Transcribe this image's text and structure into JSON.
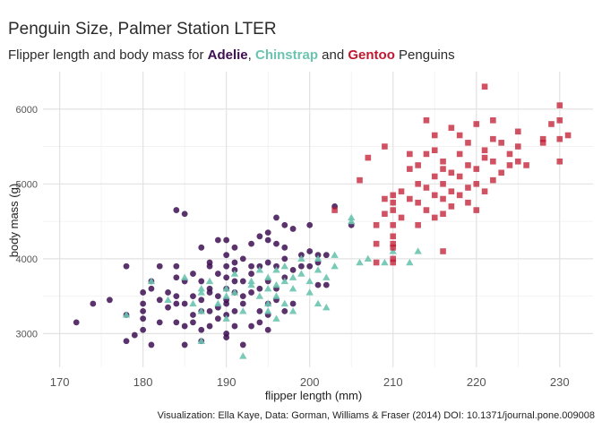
{
  "chart_data": {
    "type": "scatter",
    "title": "Penguin Size, Palmer Station LTER",
    "subtitle": {
      "prefix": "Flipper length and body mass for ",
      "species": [
        "Adelie",
        "Chinstrap",
        "Gentoo"
      ],
      "sep1": ", ",
      "sep2": " and ",
      "suffix": " Penguins"
    },
    "xlabel": "flipper length (mm)",
    "ylabel": "body mass (g)",
    "xlim": [
      168,
      234
    ],
    "ylim": [
      2550,
      6500
    ],
    "x_ticks": [
      170,
      180,
      190,
      200,
      210,
      220,
      230
    ],
    "y_ticks": [
      3000,
      4000,
      5000,
      6000
    ],
    "grid": true,
    "caption": "Visualization: Ella Kaye, Data: Gorman, Williams & Fraser (2014) DOI: 10.1371/journal.pone.009008",
    "series": [
      {
        "name": "Adelie",
        "color": "#3d0f52",
        "marker": "circle",
        "points": [
          [
            172,
            3150
          ],
          [
            174,
            3400
          ],
          [
            176,
            3450
          ],
          [
            178,
            3250
          ],
          [
            178,
            3900
          ],
          [
            178,
            2900
          ],
          [
            179,
            2980
          ],
          [
            180,
            3550
          ],
          [
            180,
            3300
          ],
          [
            180,
            3400
          ],
          [
            180,
            3200
          ],
          [
            180,
            3050
          ],
          [
            181,
            3600
          ],
          [
            181,
            2850
          ],
          [
            181,
            3700
          ],
          [
            182,
            3900
          ],
          [
            182,
            3450
          ],
          [
            182,
            3150
          ],
          [
            183,
            3350
          ],
          [
            183,
            3550
          ],
          [
            184,
            3150
          ],
          [
            184,
            3400
          ],
          [
            184,
            3500
          ],
          [
            184,
            3750
          ],
          [
            184,
            3900
          ],
          [
            184,
            4650
          ],
          [
            185,
            2850
          ],
          [
            185,
            3100
          ],
          [
            185,
            3700
          ],
          [
            185,
            3400
          ],
          [
            185,
            4600
          ],
          [
            186,
            3500
          ],
          [
            186,
            3250
          ],
          [
            186,
            3800
          ],
          [
            186,
            3150
          ],
          [
            187,
            3300
          ],
          [
            187,
            3450
          ],
          [
            187,
            3700
          ],
          [
            187,
            2900
          ],
          [
            187,
            3050
          ],
          [
            187,
            4150
          ],
          [
            188,
            3950
          ],
          [
            188,
            3600
          ],
          [
            188,
            3550
          ],
          [
            188,
            3300
          ],
          [
            188,
            3100
          ],
          [
            188,
            3900
          ],
          [
            189,
            3350
          ],
          [
            189,
            3800
          ],
          [
            189,
            3500
          ],
          [
            189,
            3200
          ],
          [
            189,
            4250
          ],
          [
            190,
            3000
          ],
          [
            190,
            3400
          ],
          [
            190,
            3600
          ],
          [
            190,
            3750
          ],
          [
            190,
            3900
          ],
          [
            190,
            4050
          ],
          [
            190,
            4250
          ],
          [
            190,
            3450
          ],
          [
            190,
            3250
          ],
          [
            190,
            2950
          ],
          [
            191,
            3550
          ],
          [
            191,
            3850
          ],
          [
            191,
            3300
          ],
          [
            191,
            4150
          ],
          [
            191,
            3100
          ],
          [
            191,
            3700
          ],
          [
            191,
            3950
          ],
          [
            192,
            3500
          ],
          [
            192,
            3700
          ],
          [
            192,
            4000
          ],
          [
            192,
            3400
          ],
          [
            192,
            2850
          ],
          [
            193,
            3800
          ],
          [
            193,
            4200
          ],
          [
            193,
            3550
          ],
          [
            193,
            3100
          ],
          [
            193,
            3900
          ],
          [
            194,
            3300
          ],
          [
            194,
            3600
          ],
          [
            194,
            3900
          ],
          [
            194,
            4300
          ],
          [
            194,
            3150
          ],
          [
            195,
            3400
          ],
          [
            195,
            3700
          ],
          [
            195,
            3950
          ],
          [
            195,
            4250
          ],
          [
            195,
            4350
          ],
          [
            195,
            3250
          ],
          [
            195,
            3050
          ],
          [
            196,
            3600
          ],
          [
            196,
            3900
          ],
          [
            196,
            4200
          ],
          [
            196,
            4550
          ],
          [
            196,
            3450
          ],
          [
            197,
            3750
          ],
          [
            197,
            4150
          ],
          [
            197,
            4450
          ],
          [
            197,
            3300
          ],
          [
            197,
            4000
          ],
          [
            198,
            3400
          ],
          [
            198,
            3850
          ],
          [
            198,
            4400
          ],
          [
            199,
            3900
          ],
          [
            199,
            4050
          ],
          [
            200,
            3900
          ],
          [
            200,
            4100
          ],
          [
            200,
            4450
          ],
          [
            201,
            3650
          ],
          [
            201,
            4050
          ],
          [
            201,
            3950
          ],
          [
            202,
            3650
          ],
          [
            202,
            4050
          ],
          [
            203,
            4700
          ],
          [
            205,
            4450
          ]
        ]
      },
      {
        "name": "Chinstrap",
        "color": "#6cc4b0",
        "marker": "triangle",
        "points": [
          [
            178,
            3250
          ],
          [
            181,
            3700
          ],
          [
            183,
            3450
          ],
          [
            185,
            3750
          ],
          [
            186,
            3400
          ],
          [
            187,
            3300
          ],
          [
            187,
            3600
          ],
          [
            187,
            2900
          ],
          [
            187,
            3550
          ],
          [
            188,
            3700
          ],
          [
            189,
            3400
          ],
          [
            190,
            3500
          ],
          [
            190,
            3200
          ],
          [
            190,
            3600
          ],
          [
            191,
            3550
          ],
          [
            191,
            3800
          ],
          [
            192,
            3300
          ],
          [
            192,
            2700
          ],
          [
            193,
            3650
          ],
          [
            193,
            3700
          ],
          [
            194,
            3500
          ],
          [
            194,
            3850
          ],
          [
            195,
            3600
          ],
          [
            195,
            3400
          ],
          [
            195,
            3750
          ],
          [
            195,
            3300
          ],
          [
            196,
            3650
          ],
          [
            196,
            3500
          ],
          [
            196,
            3850
          ],
          [
            196,
            3200
          ],
          [
            197,
            3700
          ],
          [
            197,
            3900
          ],
          [
            197,
            3400
          ],
          [
            198,
            3300
          ],
          [
            198,
            3750
          ],
          [
            198,
            3600
          ],
          [
            199,
            3800
          ],
          [
            199,
            4000
          ],
          [
            200,
            3550
          ],
          [
            200,
            3700
          ],
          [
            201,
            4000
          ],
          [
            201,
            3850
          ],
          [
            201,
            3400
          ],
          [
            202,
            3750
          ],
          [
            202,
            3350
          ],
          [
            203,
            4050
          ],
          [
            203,
            3900
          ],
          [
            205,
            4550
          ],
          [
            205,
            4500
          ],
          [
            206,
            3950
          ],
          [
            207,
            4000
          ],
          [
            209,
            3950
          ],
          [
            210,
            4100
          ],
          [
            212,
            3950
          ],
          [
            213,
            4100
          ]
        ]
      },
      {
        "name": "Gentoo",
        "color": "#c0182f",
        "marker": "square",
        "points": [
          [
            203,
            4650
          ],
          [
            206,
            5050
          ],
          [
            207,
            5350
          ],
          [
            208,
            3950
          ],
          [
            208,
            4200
          ],
          [
            208,
            4450
          ],
          [
            209,
            4600
          ],
          [
            209,
            4800
          ],
          [
            209,
            5500
          ],
          [
            210,
            4150
          ],
          [
            210,
            4300
          ],
          [
            210,
            4450
          ],
          [
            210,
            4650
          ],
          [
            210,
            4750
          ],
          [
            210,
            4850
          ],
          [
            210,
            3950
          ],
          [
            210,
            4000
          ],
          [
            210,
            4200
          ],
          [
            211,
            4550
          ],
          [
            211,
            4900
          ],
          [
            212,
            4800
          ],
          [
            212,
            5200
          ],
          [
            212,
            5400
          ],
          [
            213,
            4450
          ],
          [
            213,
            4750
          ],
          [
            213,
            5000
          ],
          [
            213,
            5250
          ],
          [
            214,
            4650
          ],
          [
            214,
            4950
          ],
          [
            214,
            5400
          ],
          [
            214,
            5850
          ],
          [
            215,
            4550
          ],
          [
            215,
            4850
          ],
          [
            215,
            5100
          ],
          [
            215,
            5450
          ],
          [
            215,
            5650
          ],
          [
            216,
            4600
          ],
          [
            216,
            4800
          ],
          [
            216,
            5000
          ],
          [
            216,
            5200
          ],
          [
            216,
            5300
          ],
          [
            216,
            4100
          ],
          [
            217,
            4700
          ],
          [
            217,
            4900
          ],
          [
            217,
            5150
          ],
          [
            217,
            5750
          ],
          [
            218,
            5400
          ],
          [
            218,
            5100
          ],
          [
            218,
            4850
          ],
          [
            218,
            5650
          ],
          [
            219,
            4750
          ],
          [
            219,
            4950
          ],
          [
            219,
            5250
          ],
          [
            219,
            5550
          ],
          [
            220,
            4650
          ],
          [
            220,
            5000
          ],
          [
            220,
            5200
          ],
          [
            220,
            5800
          ],
          [
            221,
            4900
          ],
          [
            221,
            5350
          ],
          [
            221,
            5450
          ],
          [
            221,
            6300
          ],
          [
            222,
            5050
          ],
          [
            222,
            5300
          ],
          [
            222,
            5600
          ],
          [
            222,
            5850
          ],
          [
            223,
            5150
          ],
          [
            223,
            5550
          ],
          [
            224,
            5400
          ],
          [
            224,
            5250
          ],
          [
            225,
            5300
          ],
          [
            225,
            5700
          ],
          [
            225,
            5500
          ],
          [
            226,
            5250
          ],
          [
            228,
            5550
          ],
          [
            228,
            5600
          ],
          [
            229,
            5800
          ],
          [
            230,
            5600
          ],
          [
            230,
            5850
          ],
          [
            230,
            6050
          ],
          [
            230,
            5300
          ],
          [
            231,
            5650
          ]
        ]
      }
    ]
  }
}
